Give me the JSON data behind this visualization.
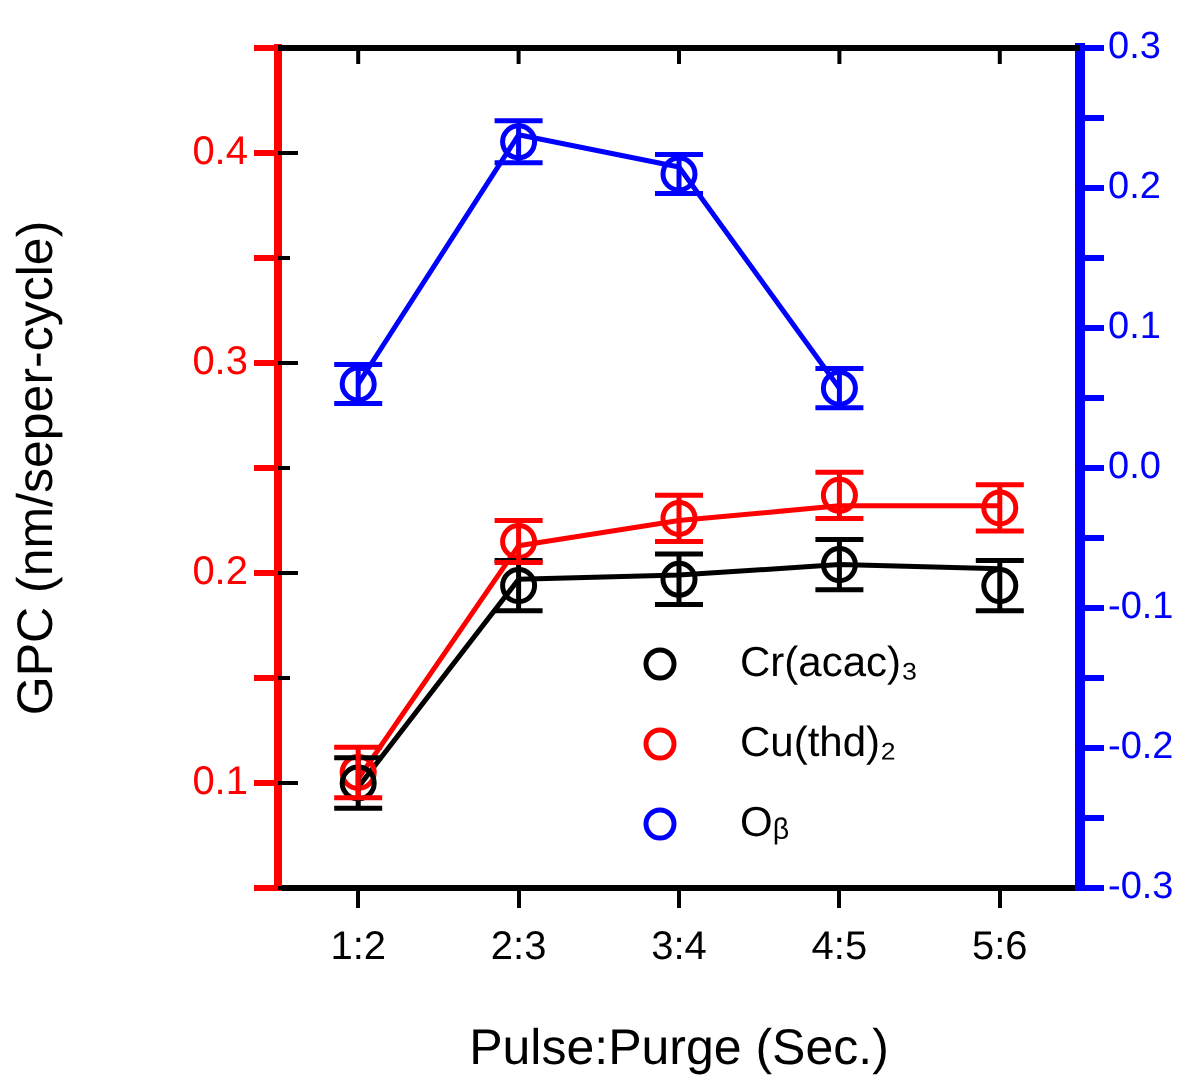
{
  "chart_data": {
    "type": "scatter",
    "xlabel": "Pulse:Purge (Sec.)",
    "ylabel": "GPC (nm/seper-cycle)",
    "categories": [
      "1:2",
      "2:3",
      "3:4",
      "4:5",
      "5:6"
    ],
    "ylim": [
      0.05,
      0.45
    ],
    "yticks": [
      {
        "value": 0.05,
        "label": null
      },
      0.1,
      {
        "value": 0.15,
        "label": null
      },
      0.2,
      {
        "value": 0.25,
        "label": null
      },
      0.3,
      {
        "value": 0.35,
        "label": null
      },
      0.4,
      {
        "value": 0.45,
        "label": null
      }
    ],
    "y2lim": [
      -0.3,
      0.3
    ],
    "y2ticks": [
      -0.3,
      {
        "value": -0.25,
        "label": null
      },
      -0.2,
      {
        "value": -0.15,
        "label": null
      },
      -0.1,
      {
        "value": -0.05,
        "label": null
      },
      {
        "value": 0,
        "label": "0.0"
      },
      {
        "value": 0.05,
        "label": null
      },
      0.1,
      {
        "value": 0.15,
        "label": null
      },
      0.2,
      {
        "value": 0.25,
        "label": null
      },
      0.3
    ],
    "legend": "bottom right",
    "grid": false,
    "series": [
      {
        "name": "Cr(acac)₃",
        "marker": "circle",
        "color": "#000000",
        "values": [
          0.1,
          0.194,
          0.197,
          0.204,
          0.194
        ],
        "errors": [
          0.012,
          0.012,
          0.012,
          0.012,
          0.012
        ]
      },
      {
        "name": "Cu(thd)₂",
        "marker": "circle",
        "color": "#ff0000",
        "values": [
          0.105,
          0.215,
          0.226,
          0.237,
          0.231
        ],
        "errors": [
          0.012,
          0.01,
          0.011,
          0.011,
          0.011
        ]
      },
      {
        "name": "Oᵦ",
        "marker": "circle",
        "axis": "y2",
        "color": "#0000ff",
        "values": [
          0.06,
          0.233,
          0.21,
          0.057,
          null
        ],
        "errors": [
          0.014,
          0.015,
          0.014,
          0.014,
          null
        ]
      },
      {
        "type": "line",
        "marker": "none",
        "color": "#000000",
        "values": [
          0.098,
          0.197,
          0.199,
          0.204,
          0.202
        ]
      },
      {
        "type": "line",
        "marker": "none",
        "color": "#ff0000",
        "values": [
          0.102,
          0.213,
          0.225,
          0.232,
          0.232
        ]
      },
      {
        "type": "line",
        "marker": "none",
        "axis": "y2",
        "color": "#0000ff",
        "values": [
          0.06,
          0.238,
          0.215,
          0.057,
          null
        ]
      }
    ]
  }
}
